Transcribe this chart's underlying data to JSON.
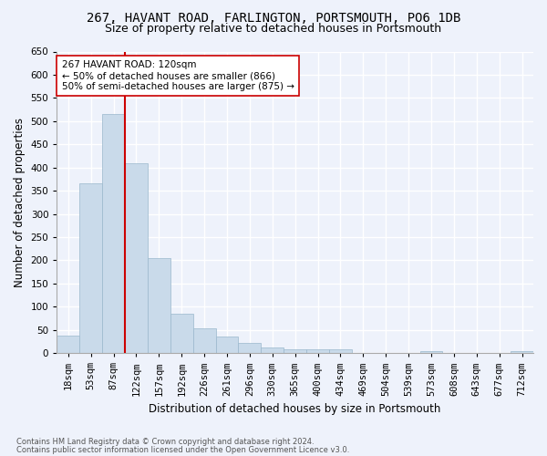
{
  "title": "267, HAVANT ROAD, FARLINGTON, PORTSMOUTH, PO6 1DB",
  "subtitle": "Size of property relative to detached houses in Portsmouth",
  "xlabel": "Distribution of detached houses by size in Portsmouth",
  "ylabel": "Number of detached properties",
  "categories": [
    "18sqm",
    "53sqm",
    "87sqm",
    "122sqm",
    "157sqm",
    "192sqm",
    "226sqm",
    "261sqm",
    "296sqm",
    "330sqm",
    "365sqm",
    "400sqm",
    "434sqm",
    "469sqm",
    "504sqm",
    "539sqm",
    "573sqm",
    "608sqm",
    "643sqm",
    "677sqm",
    "712sqm"
  ],
  "values": [
    38,
    365,
    515,
    410,
    205,
    85,
    53,
    35,
    22,
    12,
    8,
    8,
    8,
    0,
    0,
    0,
    5,
    0,
    0,
    0,
    5
  ],
  "bar_color": "#c9daea",
  "bar_edge_color": "#9ab8cc",
  "vline_x": 2.5,
  "vline_color": "#cc0000",
  "annotation_text": "267 HAVANT ROAD: 120sqm\n← 50% of detached houses are smaller (866)\n50% of semi-detached houses are larger (875) →",
  "annotation_box_color": "#ffffff",
  "annotation_box_edge": "#cc0000",
  "ylim": [
    0,
    650
  ],
  "yticks": [
    0,
    50,
    100,
    150,
    200,
    250,
    300,
    350,
    400,
    450,
    500,
    550,
    600,
    650
  ],
  "footer_line1": "Contains HM Land Registry data © Crown copyright and database right 2024.",
  "footer_line2": "Contains public sector information licensed under the Open Government Licence v3.0.",
  "bg_color": "#eef2fb",
  "plot_bg_color": "#eef2fb",
  "grid_color": "#ffffff",
  "title_fontsize": 10,
  "subtitle_fontsize": 9,
  "xlabel_fontsize": 8.5,
  "ylabel_fontsize": 8.5,
  "tick_fontsize": 7.5,
  "annot_fontsize": 7.5,
  "footer_fontsize": 6
}
